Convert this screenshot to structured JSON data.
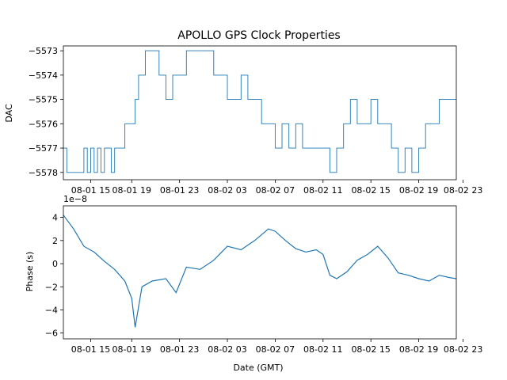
{
  "chart_data": {
    "title": "APOLLO GPS Clock Properties",
    "line_color": "#1f77b4",
    "panels": [
      {
        "type": "line",
        "step": true,
        "ylabel": "DAC",
        "xlabel": "",
        "offset_text": "",
        "xlim": [
          0,
          115
        ],
        "ylim": [
          -5578.3,
          -5572.8
        ],
        "yticks": [
          -5573,
          -5574,
          -5575,
          -5576,
          -5577,
          -5578
        ],
        "ytick_labels": [
          "−5573",
          "−5574",
          "−5575",
          "−5576",
          "−5577",
          "−5578"
        ],
        "xticks": [
          8,
          20,
          34,
          48,
          62,
          76,
          90,
          104,
          117
        ],
        "xtick_labels": [
          "08-01 15",
          "08-01 19",
          "08-01 23",
          "08-02 03",
          "08-02 07",
          "08-02 11",
          "08-02 15",
          "08-02 19",
          "08-02 23"
        ],
        "series": [
          {
            "x": [
              0,
              1,
              6,
              7,
              8,
              9,
              10,
              11,
              12,
              14,
              15,
              16,
              18,
              20,
              21,
              22,
              24,
              26,
              28,
              30,
              32,
              34,
              36,
              38,
              40,
              42,
              44,
              46,
              48,
              50,
              52,
              54,
              56,
              58,
              60,
              62,
              64,
              66,
              68,
              70,
              72,
              74,
              76,
              78,
              80,
              82,
              84,
              86,
              88,
              90,
              92,
              94,
              96,
              98,
              100,
              102,
              104,
              106,
              108,
              110,
              112,
              115
            ],
            "y": [
              -5577,
              -5578,
              -5577,
              -5578,
              -5577,
              -5578,
              -5577,
              -5578,
              -5577,
              -5578,
              -5577,
              -5577,
              -5576,
              -5576,
              -5575,
              -5574,
              -5573,
              -5573,
              -5574,
              -5575,
              -5574,
              -5574,
              -5573,
              -5573,
              -5573,
              -5573,
              -5574,
              -5574,
              -5575,
              -5575,
              -5574,
              -5575,
              -5575,
              -5576,
              -5576,
              -5577,
              -5576,
              -5577,
              -5576,
              -5577,
              -5577,
              -5577,
              -5577,
              -5578,
              -5577,
              -5576,
              -5575,
              -5576,
              -5576,
              -5575,
              -5576,
              -5576,
              -5577,
              -5578,
              -5577,
              -5578,
              -5577,
              -5576,
              -5576,
              -5575,
              -5575,
              -5575
            ]
          }
        ]
      },
      {
        "type": "line",
        "step": false,
        "ylabel": "Phase (s)",
        "xlabel": "Date (GMT)",
        "offset_text": "1e−8",
        "xlim": [
          0,
          115
        ],
        "ylim": [
          -6.5,
          5.0
        ],
        "yticks": [
          4,
          2,
          0,
          -2,
          -4,
          -6
        ],
        "ytick_labels": [
          "4",
          "2",
          "0",
          "−2",
          "−4",
          "−6"
        ],
        "xticks": [
          8,
          20,
          34,
          48,
          62,
          76,
          90,
          104,
          117
        ],
        "xtick_labels": [
          "08-01 15",
          "08-01 19",
          "08-01 23",
          "08-02 03",
          "08-02 07",
          "08-02 11",
          "08-02 15",
          "08-02 19",
          "08-02 23"
        ],
        "series": [
          {
            "x": [
              0,
              3,
              6,
              9,
              12,
              15,
              18,
              20,
              21,
              23,
              26,
              30,
              33,
              36,
              40,
              44,
              48,
              52,
              56,
              60,
              62,
              65,
              68,
              71,
              74,
              76,
              78,
              80,
              83,
              86,
              89,
              92,
              95,
              98,
              101,
              104,
              107,
              110,
              113,
              115
            ],
            "y": [
              4.2,
              3.0,
              1.5,
              1.0,
              0.2,
              -0.5,
              -1.5,
              -3.0,
              -5.5,
              -2.0,
              -1.5,
              -1.3,
              -2.5,
              -0.3,
              -0.5,
              0.3,
              1.5,
              1.2,
              2.0,
              3.0,
              2.8,
              2.0,
              1.3,
              1.0,
              1.2,
              0.8,
              -1.0,
              -1.3,
              -0.7,
              0.3,
              0.8,
              1.5,
              0.5,
              -0.8,
              -1.0,
              -1.3,
              -1.5,
              -1.0,
              -1.2,
              -1.3
            ]
          }
        ]
      }
    ]
  }
}
